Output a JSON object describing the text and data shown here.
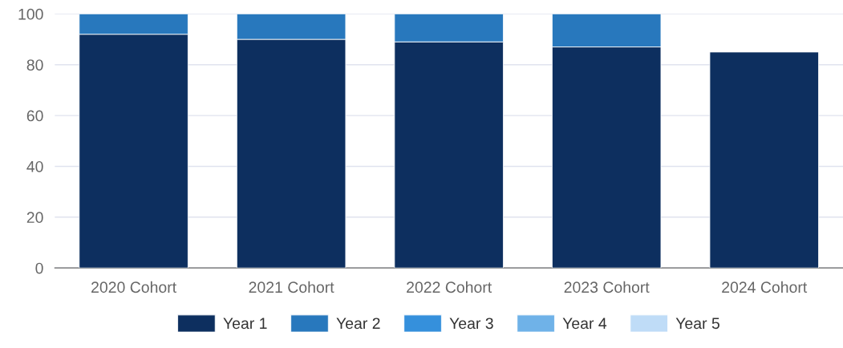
{
  "chart_data": {
    "type": "bar",
    "stacked": true,
    "categories": [
      "2020 Cohort",
      "2021 Cohort",
      "2022 Cohort",
      "2023 Cohort",
      "2024 Cohort"
    ],
    "series": [
      {
        "name": "Year 1",
        "color": "#0d2f5f",
        "values": [
          92,
          90,
          89,
          87,
          85
        ]
      },
      {
        "name": "Year 2",
        "color": "#2878bd",
        "values": [
          8,
          10,
          11,
          13,
          null
        ]
      },
      {
        "name": "Year 3",
        "color": "#3590dc",
        "values": [
          null,
          null,
          null,
          null,
          null
        ]
      },
      {
        "name": "Year 4",
        "color": "#6fb2e8",
        "values": [
          null,
          null,
          null,
          null,
          null
        ]
      },
      {
        "name": "Year 5",
        "color": "#bfdcf7",
        "values": [
          null,
          null,
          null,
          null,
          null
        ]
      }
    ],
    "ylim": [
      0,
      100
    ],
    "yticks": [
      0,
      20,
      40,
      60,
      80,
      100
    ],
    "grid": "y",
    "legend": "bottom"
  }
}
